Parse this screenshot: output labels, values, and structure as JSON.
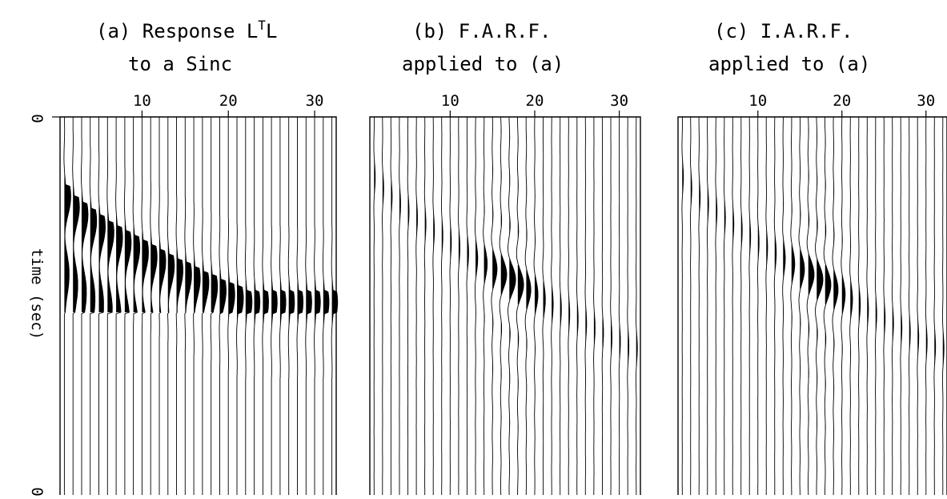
{
  "chart_data": [
    {
      "type": "wiggle",
      "title_lines": [
        "(a) Response L",
        "to a Sinc"
      ],
      "title_superscript": "T",
      "title_suffix": "L",
      "x_ticks": [
        10,
        20,
        30
      ],
      "xlim": [
        1,
        32
      ],
      "trace_count": 32,
      "ylabel": "time (sec)",
      "y_tick_labels": [
        "0",
        "0"
      ],
      "curve": {
        "start_trace": 1,
        "start_time": 0.21,
        "end_trace": 22,
        "end_time": 0.49,
        "flat_time": 0.49
      },
      "fill": "heavy",
      "traces": [
        1,
        2,
        3,
        4,
        5,
        6,
        7,
        8,
        9,
        10,
        11,
        12,
        13,
        14,
        15,
        16,
        17,
        18,
        19,
        20,
        21,
        22,
        23,
        24,
        25,
        26,
        27,
        28,
        29,
        30,
        31,
        32
      ]
    },
    {
      "type": "wiggle",
      "title_lines": [
        "(b) F.A.R.F.",
        "applied to (a)"
      ],
      "x_ticks": [
        10,
        20,
        30
      ],
      "xlim": [
        1,
        32
      ],
      "trace_count": 32,
      "curve": {
        "start_trace": 1,
        "start_time": 0.16,
        "end_trace": 20,
        "end_time": 0.47
      },
      "fill": "focused",
      "traces": [
        1,
        2,
        3,
        4,
        5,
        6,
        7,
        8,
        9,
        10,
        11,
        12,
        13,
        14,
        15,
        16,
        17,
        18,
        19,
        20,
        21,
        22,
        23,
        24,
        25,
        26,
        27,
        28,
        29,
        30,
        31,
        32
      ]
    },
    {
      "type": "wiggle",
      "title_lines": [
        "(c) I.A.R.F.",
        "applied to (a)"
      ],
      "x_ticks": [
        10,
        20,
        30
      ],
      "xlim": [
        1,
        32
      ],
      "trace_count": 32,
      "curve": {
        "start_trace": 1,
        "start_time": 0.16,
        "end_trace": 20,
        "end_time": 0.47
      },
      "fill": "focused",
      "traces": [
        1,
        2,
        3,
        4,
        5,
        6,
        7,
        8,
        9,
        10,
        11,
        12,
        13,
        14,
        15,
        16,
        17,
        18,
        19,
        20,
        21,
        22,
        23,
        24,
        25,
        26,
        27,
        28,
        29,
        30,
        31,
        32
      ]
    }
  ]
}
